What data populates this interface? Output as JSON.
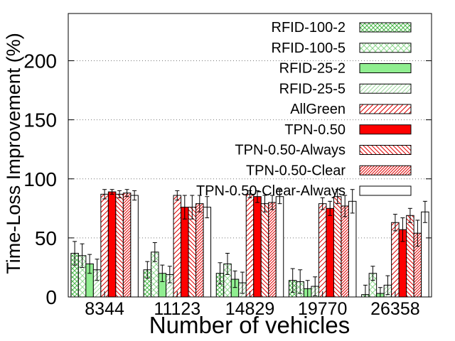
{
  "chart_data": {
    "type": "bar",
    "xlabel": "Number of vehicles",
    "ylabel": "Time-Loss Improvement (%)",
    "ylim": [
      0,
      240
    ],
    "yticks": [
      0,
      50,
      100,
      150,
      200
    ],
    "grid": "horizontal dotted",
    "legend_position": "top-right",
    "categories": [
      "8344",
      "11123",
      "14829",
      "19770",
      "26358"
    ],
    "series": [
      {
        "name": "RFID-100-2",
        "style": "crosshatch-green",
        "values": [
          37,
          23,
          20,
          14,
          2
        ],
        "errors": [
          10,
          7,
          9,
          10,
          8
        ]
      },
      {
        "name": "RFID-100-5",
        "style": "crosshatch-light",
        "values": [
          35,
          38,
          28,
          13,
          20
        ],
        "errors": [
          10,
          8,
          9,
          10,
          6
        ]
      },
      {
        "name": "RFID-25-2",
        "style": "solid-green",
        "values": [
          28,
          20,
          15,
          7,
          3
        ],
        "errors": [
          8,
          7,
          7,
          7,
          5
        ]
      },
      {
        "name": "RFID-25-5",
        "style": "hatch-light",
        "values": [
          23,
          19,
          12,
          9,
          10
        ],
        "errors": [
          9,
          7,
          9,
          8,
          8
        ]
      },
      {
        "name": "AllGreen",
        "style": "hatch-red-sparse",
        "values": [
          87,
          86,
          87,
          79,
          63
        ],
        "errors": [
          4,
          4,
          3,
          5,
          7
        ]
      },
      {
        "name": "TPN-0.50",
        "style": "solid-red",
        "values": [
          89,
          76,
          85,
          75,
          57
        ],
        "errors": [
          2,
          10,
          5,
          6,
          10
        ]
      },
      {
        "name": "TPN-0.50-Always",
        "style": "hatch-red-back",
        "values": [
          87,
          76,
          79,
          85,
          69
        ],
        "errors": [
          3,
          10,
          7,
          6,
          6
        ]
      },
      {
        "name": "TPN-0.50-Clear",
        "style": "hatch-red-dense",
        "values": [
          88,
          79,
          80,
          77,
          54
        ],
        "errors": [
          3,
          7,
          6,
          9,
          11
        ]
      },
      {
        "name": "TPN-0.50-Clear-Always",
        "style": "white",
        "values": [
          86,
          76,
          85,
          81,
          72
        ],
        "errors": [
          4,
          9,
          6,
          10,
          9
        ]
      }
    ],
    "colors": {
      "green": "#90ee90",
      "red": "#ff0000",
      "outline": "#000000"
    }
  }
}
